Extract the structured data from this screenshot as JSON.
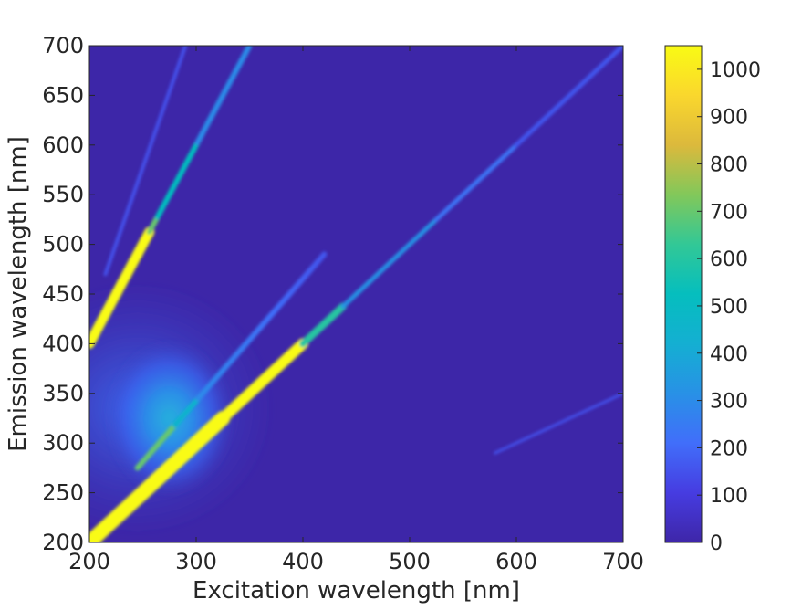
{
  "chart_data": {
    "type": "heatmap",
    "subtype": "filled-contour excitation-emission matrix",
    "title": "",
    "xlabel": "Excitation wavelength [nm]",
    "ylabel": "Emission wavelength [nm]",
    "xlim": [
      200,
      700
    ],
    "ylim": [
      200,
      700
    ],
    "xticks": [
      200,
      300,
      400,
      500,
      600,
      700
    ],
    "yticks": [
      200,
      250,
      300,
      350,
      400,
      450,
      500,
      550,
      600,
      650,
      700
    ],
    "colorbar": {
      "colormap": "parula",
      "range": [
        0,
        1050
      ],
      "ticks": [
        0,
        100,
        200,
        300,
        400,
        500,
        600,
        700,
        800,
        900,
        1000
      ]
    },
    "features": [
      {
        "name": "Rayleigh scatter (1st order)",
        "x": [
          200,
          700
        ],
        "y": [
          200,
          700
        ],
        "peak_intensity": 1050,
        "note": "strong (>1000) for excitation 200-400 nm, fading to ~150 by 700 nm"
      },
      {
        "name": "Rayleigh scatter (2nd order)",
        "x": [
          200,
          350
        ],
        "y": [
          400,
          700
        ],
        "peak_intensity": 1050,
        "note": "saturated for excitation 200-255 nm, ~500 near 290 nm"
      },
      {
        "name": "Raman scatter (2nd order)",
        "x": [
          215,
          290
        ],
        "y": [
          470,
          700
        ],
        "peak_intensity": 150
      },
      {
        "name": "Raman scatter (1st order)",
        "x": [
          245,
          420
        ],
        "y": [
          275,
          490
        ],
        "peak_intensity": 350
      },
      {
        "name": "Faint 3rd-order scatter",
        "x": [
          580,
          700
        ],
        "y": [
          290,
          350
        ],
        "peak_intensity": 150
      },
      {
        "name": "Fluorescence peak",
        "x": [
          275
        ],
        "y": [
          325
        ],
        "peak_intensity": 330,
        "note": "diffuse blob spanning excitation 200-310 nm, emission 240-420 nm"
      }
    ],
    "grid": false,
    "legend": "colorbar on right"
  }
}
